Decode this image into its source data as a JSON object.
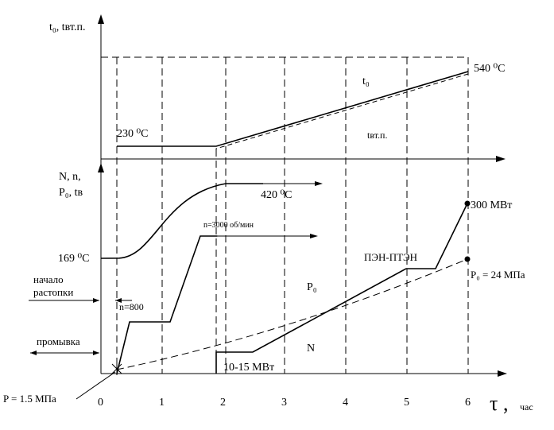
{
  "chart_data": {
    "type": "line",
    "x_axis": {
      "label": "τ ,",
      "unit": "час",
      "ticks": [
        "0",
        "1",
        "2",
        "3",
        "4",
        "5",
        "6"
      ],
      "range": [
        0,
        6.6
      ]
    },
    "top_panel": {
      "ylabel": "t₀, tвт.п.",
      "series": [
        {
          "name": "t₀",
          "points": [
            [
              0.25,
              230
            ],
            [
              1.9,
              230
            ],
            [
              6,
              540
            ]
          ]
        },
        {
          "name": "tвт.п.",
          "points": [
            [
              1.9,
              220
            ],
            [
              6,
              530
            ]
          ]
        }
      ],
      "labels": {
        "start": "230 ⁰C",
        "end": "540 ⁰C",
        "t0": "t₀",
        "tvtp": "tвт.п."
      }
    },
    "bottom_panel": {
      "ylabel_1": "N, n,",
      "ylabel_2": "P₀, tв",
      "series": [
        {
          "name": "tв",
          "points": [
            [
              0,
              169
            ],
            [
              0.4,
              175
            ],
            [
              1.9,
              410
            ],
            [
              3,
              420
            ]
          ]
        },
        {
          "name": "n",
          "points": [
            [
              0.3,
              0
            ],
            [
              0.5,
              800
            ],
            [
              1.1,
              800
            ],
            [
              1.6,
              3000
            ],
            [
              3,
              3000
            ]
          ]
        },
        {
          "name": "N",
          "points": [
            [
              1.9,
              0
            ],
            [
              1.9,
              10
            ],
            [
              2.5,
              10
            ],
            [
              5,
              105
            ],
            [
              5.5,
              105
            ],
            [
              6,
              300
            ]
          ]
        },
        {
          "name": "P₀",
          "points": [
            [
              0.25,
              1.5
            ],
            [
              1,
              3
            ],
            [
              2,
              6
            ],
            [
              3,
              10
            ],
            [
              4,
              15
            ],
            [
              5,
              20
            ],
            [
              6,
              24
            ]
          ]
        }
      ],
      "labels": {
        "tv_start": "169 ⁰C",
        "tv_end": "420 ⁰C",
        "n_max": "n=3000 об/мин",
        "n_800": "n=800",
        "pen": "ПЭН-ПТЭН",
        "p0": "P₀",
        "p0_end": "P₀ = 24 МПа",
        "n_label": "N",
        "n_end": "300 МВт",
        "n_low": "10-15 МВт",
        "start_1": "начало",
        "start_2": "растопки",
        "flush": "промывка",
        "p_start": "P = 1.5 МПа"
      }
    }
  }
}
